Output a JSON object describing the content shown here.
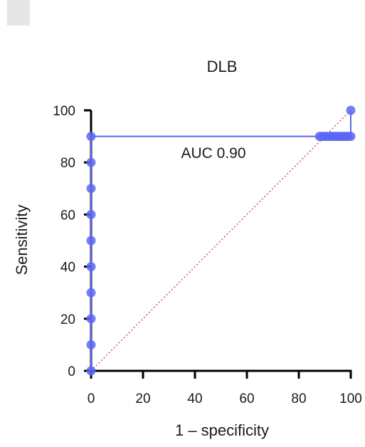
{
  "chart_data": {
    "type": "line",
    "title": "DLB",
    "xlabel": "1 – specificity",
    "ylabel": "Sensitivity",
    "annotation": "AUC 0.90",
    "xlim": [
      0,
      100
    ],
    "ylim": [
      0,
      100
    ],
    "x_ticks": [
      0,
      20,
      40,
      60,
      80,
      100
    ],
    "x_tick_labels": [
      "0",
      "20",
      "40",
      "60",
      "80",
      "100"
    ],
    "y_ticks": [
      0,
      20,
      40,
      60,
      80,
      100
    ],
    "y_tick_labels": [
      "0",
      "20",
      "40",
      "60",
      "80",
      "100"
    ],
    "series": [
      {
        "color": "#5a67f2",
        "points": [
          [
            0,
            0
          ],
          [
            0,
            10
          ],
          [
            0,
            20
          ],
          [
            0,
            30
          ],
          [
            0,
            40
          ],
          [
            0,
            50
          ],
          [
            0,
            60
          ],
          [
            0,
            70
          ],
          [
            0,
            80
          ],
          [
            0,
            90
          ],
          [
            88,
            90
          ],
          [
            89,
            90
          ],
          [
            90,
            90
          ],
          [
            91,
            90
          ],
          [
            92,
            90
          ],
          [
            93,
            90
          ],
          [
            94,
            90
          ],
          [
            95,
            90
          ],
          [
            96,
            90
          ],
          [
            97,
            90
          ],
          [
            98,
            90
          ],
          [
            99,
            90
          ],
          [
            100,
            90
          ],
          [
            100,
            100
          ]
        ]
      }
    ],
    "reference_line": {
      "color": "#e84b4b",
      "style": "dotted",
      "points": [
        [
          0,
          0
        ],
        [
          100,
          100
        ]
      ]
    },
    "grid": false,
    "legend": "none"
  },
  "corner_box_color": "#e6e6e6"
}
